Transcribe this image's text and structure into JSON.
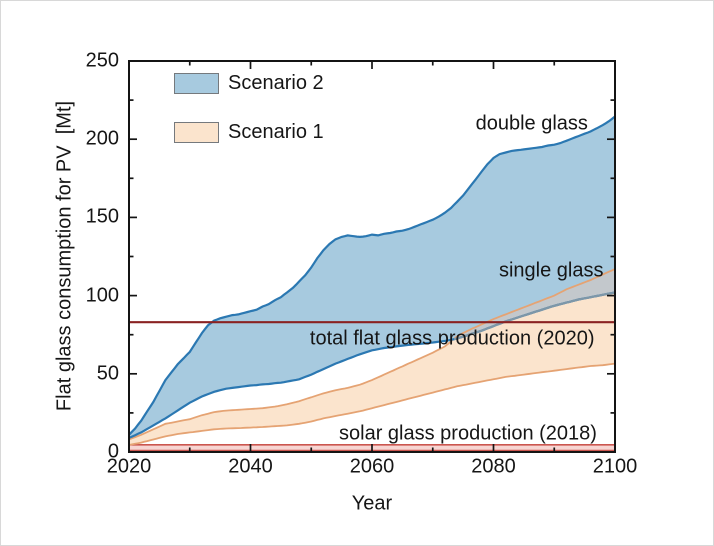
{
  "chart_data": {
    "type": "area",
    "title": "",
    "xlabel": "Year",
    "ylabel": "Flat glass consumption for PV  [Mt]",
    "x_range": [
      2020,
      2100
    ],
    "y_range": [
      0,
      250
    ],
    "x_major_ticks": [
      2020,
      2040,
      2060,
      2080,
      2100
    ],
    "x_tick_labels": [
      "2020",
      "2040",
      "2060",
      "2080",
      "2100"
    ],
    "x_minor_ticks": [
      2030,
      2050,
      2070,
      2090
    ],
    "y_major_ticks": [
      0,
      50,
      100,
      150,
      200,
      250
    ],
    "y_tick_labels": [
      "0",
      "50",
      "100",
      "150",
      "200",
      "250"
    ],
    "y_minor_ticks": [
      25,
      75,
      125,
      175,
      225
    ],
    "grid": false,
    "colors": {
      "s2_fill": "#A7CADF",
      "s2_line": "#2B78B2",
      "s1_fill": "#FBE4CD",
      "s1_line": "#E5A373",
      "overlap_fill": "#C3C8CC",
      "overlap_line": "#7E97A8",
      "frame": "#141414"
    },
    "legend": {
      "position": "top-left-inside",
      "items": [
        {
          "label": "Scenario 2",
          "fill": "#A7CADF",
          "border": "#75797d"
        },
        {
          "label": "Scenario 1",
          "fill": "#FBE4CD",
          "border": "#75797d"
        }
      ]
    },
    "series": [
      {
        "id": "s2_upper",
        "name": "Scenario 2 upper bound (double glass)",
        "points": [
          [
            2020,
            11
          ],
          [
            2021,
            15
          ],
          [
            2022,
            20
          ],
          [
            2023,
            26
          ],
          [
            2024,
            32
          ],
          [
            2025,
            39
          ],
          [
            2026,
            46
          ],
          [
            2027,
            51
          ],
          [
            2028,
            56
          ],
          [
            2029,
            60
          ],
          [
            2030,
            64
          ],
          [
            2031,
            70
          ],
          [
            2032,
            76
          ],
          [
            2033,
            81
          ],
          [
            2034,
            84
          ],
          [
            2035,
            85.5
          ],
          [
            2036,
            86.5
          ],
          [
            2037,
            87.5
          ],
          [
            2038,
            88
          ],
          [
            2039,
            89
          ],
          [
            2040,
            90
          ],
          [
            2041,
            91
          ],
          [
            2042,
            93
          ],
          [
            2043,
            94.5
          ],
          [
            2044,
            97
          ],
          [
            2045,
            99
          ],
          [
            2046,
            102
          ],
          [
            2047,
            105
          ],
          [
            2048,
            109
          ],
          [
            2049,
            113
          ],
          [
            2050,
            118
          ],
          [
            2051,
            124
          ],
          [
            2052,
            129
          ],
          [
            2053,
            133
          ],
          [
            2054,
            136
          ],
          [
            2055,
            137.5
          ],
          [
            2056,
            138.5
          ],
          [
            2057,
            138
          ],
          [
            2058,
            137.5
          ],
          [
            2059,
            138
          ],
          [
            2060,
            139
          ],
          [
            2061,
            138.5
          ],
          [
            2062,
            139.5
          ],
          [
            2063,
            140
          ],
          [
            2064,
            141
          ],
          [
            2065,
            141.5
          ],
          [
            2066,
            142.5
          ],
          [
            2067,
            144
          ],
          [
            2068,
            145.5
          ],
          [
            2069,
            147
          ],
          [
            2070,
            148.5
          ],
          [
            2071,
            150.5
          ],
          [
            2072,
            153
          ],
          [
            2073,
            156
          ],
          [
            2074,
            160
          ],
          [
            2075,
            164
          ],
          [
            2076,
            169
          ],
          [
            2077,
            174
          ],
          [
            2078,
            179
          ],
          [
            2079,
            184
          ],
          [
            2080,
            188
          ],
          [
            2081,
            190.5
          ],
          [
            2082,
            191.5
          ],
          [
            2083,
            192.5
          ],
          [
            2084,
            193
          ],
          [
            2085,
            193.5
          ],
          [
            2086,
            194
          ],
          [
            2087,
            194.5
          ],
          [
            2088,
            195
          ],
          [
            2089,
            196
          ],
          [
            2090,
            196.5
          ],
          [
            2091,
            197.5
          ],
          [
            2092,
            199
          ],
          [
            2093,
            200.5
          ],
          [
            2094,
            202
          ],
          [
            2095,
            203.5
          ],
          [
            2096,
            205
          ],
          [
            2097,
            207
          ],
          [
            2098,
            209
          ],
          [
            2099,
            211.5
          ],
          [
            2100,
            214.5
          ]
        ]
      },
      {
        "id": "s2_lower",
        "name": "Scenario 2 lower bound (single glass)",
        "points": [
          [
            2020,
            9
          ],
          [
            2022,
            12.5
          ],
          [
            2024,
            17
          ],
          [
            2026,
            21.5
          ],
          [
            2028,
            26.5
          ],
          [
            2030,
            31.5
          ],
          [
            2032,
            35.5
          ],
          [
            2034,
            38.5
          ],
          [
            2036,
            40.5
          ],
          [
            2038,
            41.5
          ],
          [
            2040,
            42.5
          ],
          [
            2041,
            42.8
          ],
          [
            2042,
            43.2
          ],
          [
            2043,
            43.5
          ],
          [
            2044,
            44
          ],
          [
            2045,
            44.3
          ],
          [
            2046,
            45
          ],
          [
            2048,
            46.5
          ],
          [
            2050,
            49.5
          ],
          [
            2052,
            53
          ],
          [
            2054,
            56.5
          ],
          [
            2056,
            59.5
          ],
          [
            2058,
            62.5
          ],
          [
            2060,
            65
          ],
          [
            2062,
            66.5
          ],
          [
            2064,
            67.5
          ],
          [
            2066,
            68.5
          ],
          [
            2068,
            69.2
          ],
          [
            2070,
            70
          ],
          [
            2072,
            71
          ],
          [
            2074,
            72.5
          ],
          [
            2076,
            75
          ],
          [
            2078,
            77.5
          ],
          [
            2080,
            80.5
          ],
          [
            2082,
            83.5
          ],
          [
            2084,
            86
          ],
          [
            2086,
            88.5
          ],
          [
            2088,
            91
          ],
          [
            2090,
            93.5
          ],
          [
            2092,
            95.5
          ],
          [
            2094,
            97.5
          ],
          [
            2096,
            99
          ],
          [
            2098,
            100.5
          ],
          [
            2100,
            102
          ]
        ]
      },
      {
        "id": "s1_upper",
        "name": "Scenario 1 upper bound (double glass)",
        "points": [
          [
            2020,
            8
          ],
          [
            2022,
            11
          ],
          [
            2024,
            14.5
          ],
          [
            2026,
            18
          ],
          [
            2028,
            19.5
          ],
          [
            2030,
            21
          ],
          [
            2032,
            23.5
          ],
          [
            2034,
            25.5
          ],
          [
            2036,
            26.5
          ],
          [
            2038,
            27
          ],
          [
            2040,
            27.5
          ],
          [
            2042,
            28
          ],
          [
            2044,
            29
          ],
          [
            2046,
            30.5
          ],
          [
            2048,
            32.5
          ],
          [
            2050,
            35
          ],
          [
            2052,
            37.5
          ],
          [
            2054,
            39.5
          ],
          [
            2056,
            41
          ],
          [
            2058,
            43
          ],
          [
            2060,
            46
          ],
          [
            2062,
            49.5
          ],
          [
            2064,
            53
          ],
          [
            2066,
            56.5
          ],
          [
            2068,
            60
          ],
          [
            2070,
            63.5
          ],
          [
            2072,
            67.5
          ],
          [
            2074,
            74
          ],
          [
            2076,
            78
          ],
          [
            2078,
            81.5
          ],
          [
            2080,
            85
          ],
          [
            2082,
            88
          ],
          [
            2084,
            91
          ],
          [
            2086,
            94
          ],
          [
            2088,
            97
          ],
          [
            2090,
            100
          ],
          [
            2092,
            104
          ],
          [
            2094,
            107
          ],
          [
            2096,
            110
          ],
          [
            2098,
            113.5
          ],
          [
            2100,
            117
          ]
        ]
      },
      {
        "id": "s1_lower",
        "name": "Scenario 1 lower bound (single glass)",
        "points": [
          [
            2020,
            4.5
          ],
          [
            2022,
            6
          ],
          [
            2024,
            8
          ],
          [
            2026,
            10
          ],
          [
            2028,
            11.5
          ],
          [
            2030,
            12.5
          ],
          [
            2032,
            13.5
          ],
          [
            2034,
            14.5
          ],
          [
            2036,
            15
          ],
          [
            2038,
            15.3
          ],
          [
            2040,
            15.6
          ],
          [
            2042,
            16
          ],
          [
            2044,
            16.5
          ],
          [
            2046,
            17
          ],
          [
            2048,
            18
          ],
          [
            2050,
            19.5
          ],
          [
            2052,
            21.5
          ],
          [
            2054,
            23
          ],
          [
            2056,
            24.5
          ],
          [
            2058,
            26
          ],
          [
            2060,
            28
          ],
          [
            2062,
            30
          ],
          [
            2064,
            32
          ],
          [
            2066,
            34
          ],
          [
            2068,
            36
          ],
          [
            2070,
            38
          ],
          [
            2072,
            40
          ],
          [
            2074,
            42
          ],
          [
            2076,
            43.5
          ],
          [
            2078,
            45
          ],
          [
            2080,
            46.5
          ],
          [
            2082,
            48
          ],
          [
            2084,
            49
          ],
          [
            2086,
            50
          ],
          [
            2088,
            51
          ],
          [
            2090,
            52
          ],
          [
            2092,
            53
          ],
          [
            2094,
            54
          ],
          [
            2096,
            55
          ],
          [
            2098,
            55.5
          ],
          [
            2100,
            56.5
          ]
        ]
      }
    ],
    "reference_line": {
      "value": 83,
      "color": "#8A2222",
      "label": "total flat glass production (2020)"
    },
    "reference_band": {
      "from": 0.9,
      "to": 4.6,
      "fill": "#F7D5D2",
      "edge": "#CB564F",
      "label": "solar glass production (2018)"
    },
    "annotations": [
      {
        "id": "double-glass",
        "text": "double glass",
        "x": 2086.3,
        "y": 210
      },
      {
        "id": "single-glass",
        "text": "single glass",
        "x": 2089.5,
        "y": 115.5
      },
      {
        "id": "total-flat-glass",
        "text": "total flat glass production (2020)",
        "x": 2073.2,
        "y": 72.3
      },
      {
        "id": "solar-glass",
        "text": "solar glass production (2018)",
        "x": 2075.8,
        "y": 11.5
      }
    ]
  }
}
